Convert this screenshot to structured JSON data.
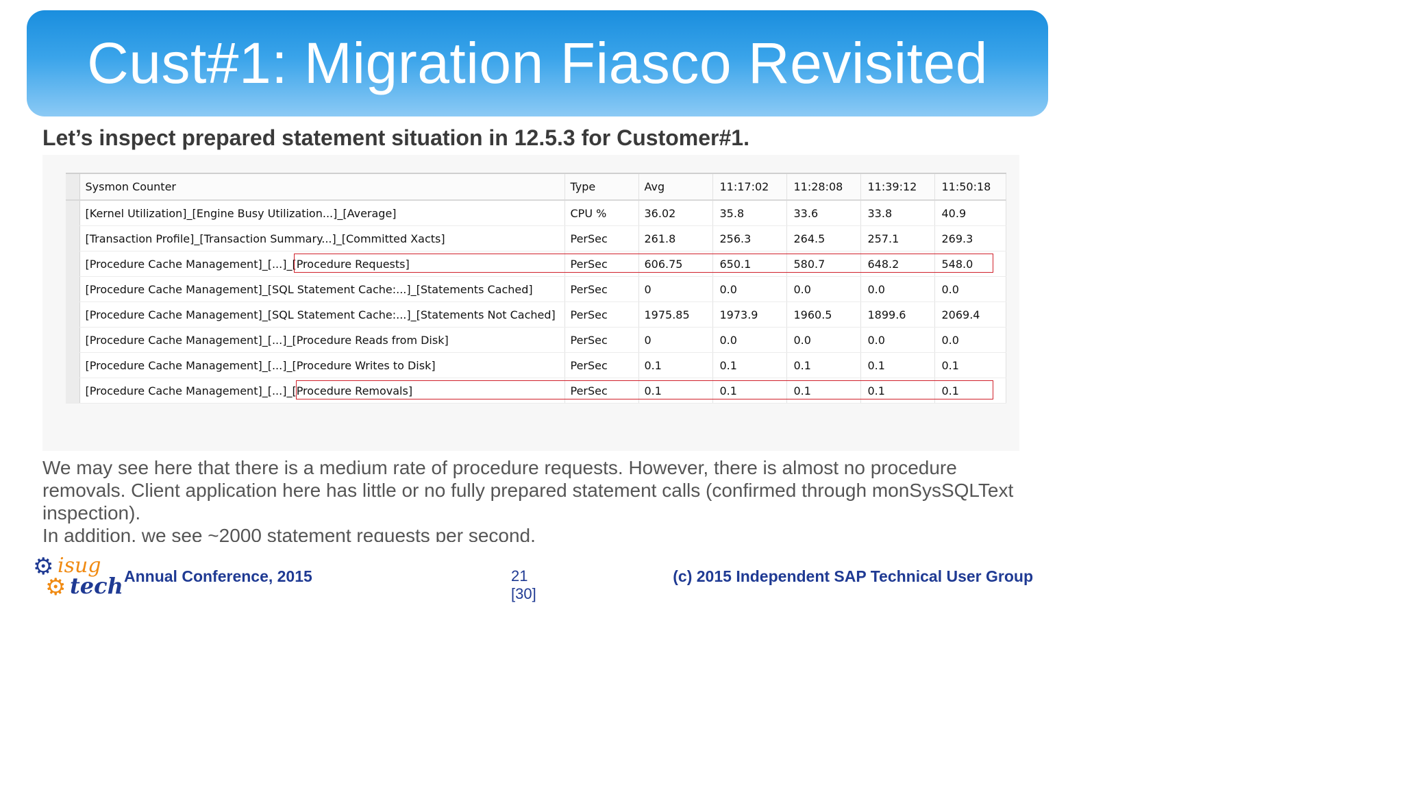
{
  "slide": {
    "title": "Cust#1: Migration Fiasco Revisited",
    "subtitle": "Let’s inspect prepared statement situation in 12.5.3 for Customer#1."
  },
  "table": {
    "headers": [
      "Sysmon Counter",
      "Type",
      "Avg",
      "11:17:02",
      "11:28:08",
      "11:39:12",
      "11:50:18"
    ],
    "rows": [
      [
        "[Kernel Utilization]_[Engine Busy Utilization...]_[Average]",
        "CPU %",
        "36.02",
        "35.8",
        "33.6",
        "33.8",
        "40.9"
      ],
      [
        "[Transaction Profile]_[Transaction Summary...]_[Committed Xacts]",
        "PerSec",
        "261.8",
        "256.3",
        "264.5",
        "257.1",
        "269.3"
      ],
      [
        "[Procedure Cache Management]_[...]_[Procedure Requests]",
        "PerSec",
        "606.75",
        "650.1",
        "580.7",
        "648.2",
        "548.0"
      ],
      [
        "[Procedure Cache Management]_[SQL Statement Cache:...]_[Statements Cached]",
        "PerSec",
        "0",
        "0.0",
        "0.0",
        "0.0",
        "0.0"
      ],
      [
        "[Procedure Cache Management]_[SQL Statement Cache:...]_[Statements Not Cached]",
        "PerSec",
        "1975.85",
        "1973.9",
        "1960.5",
        "1899.6",
        "2069.4"
      ],
      [
        "[Procedure Cache Management]_[...]_[Procedure Reads from Disk]",
        "PerSec",
        "0",
        "0.0",
        "0.0",
        "0.0",
        "0.0"
      ],
      [
        "[Procedure Cache Management]_[...]_[Procedure Writes to Disk]",
        "PerSec",
        "0.1",
        "0.1",
        "0.1",
        "0.1",
        "0.1"
      ],
      [
        "[Procedure Cache Management]_[...]_[Procedure Removals]",
        "PerSec",
        "0.1",
        "0.1",
        "0.1",
        "0.1",
        "0.1"
      ]
    ],
    "highlighted_rows": [
      2,
      7
    ],
    "highlight_color": "#d0202a"
  },
  "body": {
    "paragraph_1": "We may see here that there is a medium rate of procedure requests.  However, there is almost no procedure removals.  Client application here has little or no fully prepared statement calls (confirmed through monSysSQLText inspection).",
    "paragraph_2": "In addition, we see ~2000 statement requests per second."
  },
  "footer": {
    "logo_text_1": "isug",
    "logo_text_2": "tech",
    "conference": "Annual Conference, 2015",
    "page_number": "21",
    "page_total": "[30]",
    "copyright": "(c) 2015 Independent SAP Technical User Group"
  },
  "colors": {
    "title_bar_top": "#1a8ede",
    "title_bar_bottom": "#8ccaf5",
    "footer_text": "#1f3a93",
    "logo_orange": "#f08a12"
  }
}
